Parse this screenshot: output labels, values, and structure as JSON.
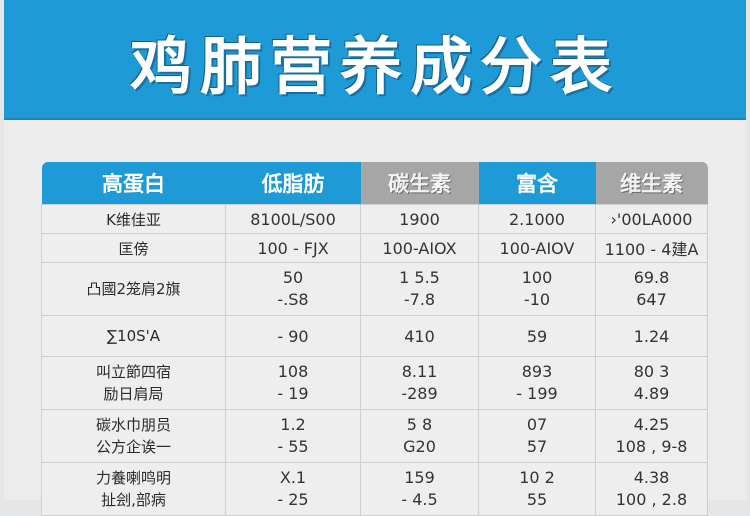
{
  "title": "鸡肺营养成分表",
  "table": {
    "headers": [
      {
        "label": "高蛋白",
        "style": "blue"
      },
      {
        "label": "低脂肪",
        "style": "blue"
      },
      {
        "label": "碳生素",
        "style": "gray"
      },
      {
        "label": "富含",
        "style": "blue"
      },
      {
        "label": "维生素",
        "style": "gray"
      }
    ],
    "rows": [
      {
        "cells": [
          [
            "K维佳亚"
          ],
          [
            "8100L/S00"
          ],
          [
            "1900"
          ],
          [
            "2.1000"
          ],
          [
            "›'00LA000"
          ]
        ]
      },
      {
        "cells": [
          [
            "匡傍"
          ],
          [
            "100 - FJX"
          ],
          [
            "100-AIOX"
          ],
          [
            "100-AIOV"
          ],
          [
            "1100 - 4建A"
          ]
        ]
      },
      {
        "cells": [
          [
            "凸國2笼肩2旗"
          ],
          [
            "50",
            "-.S8"
          ],
          [
            "1 5.5",
            "-7.8"
          ],
          [
            "100",
            "-10"
          ],
          [
            "69.8",
            "647"
          ]
        ]
      },
      {
        "cells": [
          [
            "∑10S'A"
          ],
          [
            "- 90"
          ],
          [
            "410"
          ],
          [
            "59"
          ],
          [
            "1.24"
          ]
        ]
      },
      {
        "cells": [
          [
            "叫立節四宿",
            "励日肩局"
          ],
          [
            "108",
            "- 19"
          ],
          [
            "8.11",
            "-289"
          ],
          [
            "893",
            "- 199"
          ],
          [
            "80 3",
            "4.89"
          ]
        ]
      },
      {
        "cells": [
          [
            "碳水巾朋员",
            "公方企诶一"
          ],
          [
            "1.2",
            "- 55"
          ],
          [
            "5 8",
            "G20"
          ],
          [
            "07",
            "57"
          ],
          [
            "4.25",
            "108 , 9-8"
          ]
        ]
      },
      {
        "cells": [
          [
            "力養喇鸣明",
            "扯刽,部病"
          ],
          [
            "X.1",
            "- 25"
          ],
          [
            "159",
            "- 4.5"
          ],
          [
            "10 2",
            "55"
          ],
          [
            "4.38",
            "100 , 2.8"
          ]
        ]
      }
    ]
  },
  "colors": {
    "banner_blue": "#1e9bd7",
    "header_gray": "#a6a6a6",
    "background": "#ececec",
    "text": "#333333"
  }
}
